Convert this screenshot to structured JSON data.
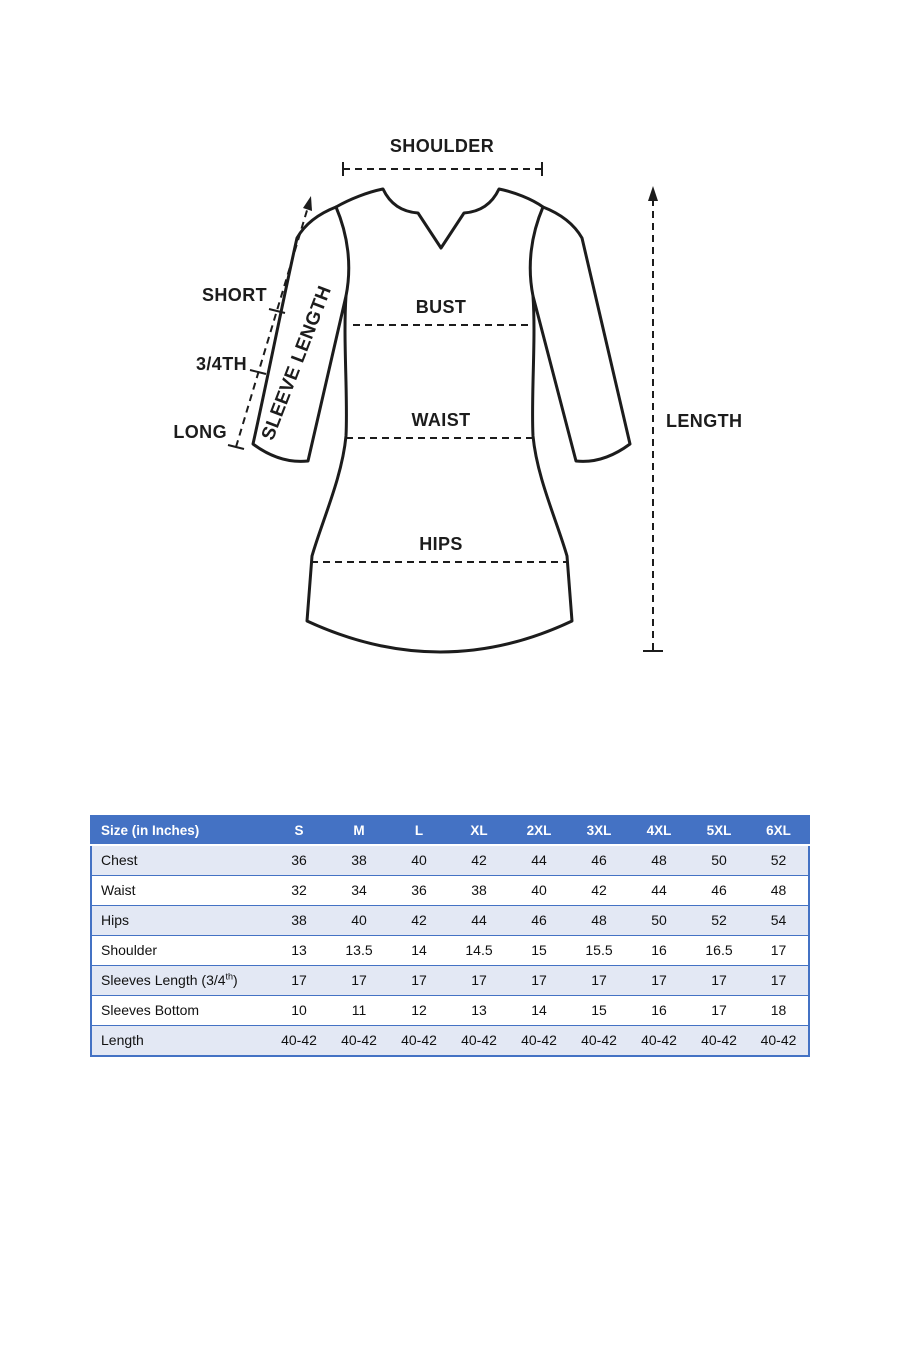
{
  "diagram": {
    "labels": {
      "shoulder": "SHOULDER",
      "bust": "BUST",
      "waist": "WAIST",
      "hips": "HIPS",
      "length": "LENGTH",
      "sleeve_length": "SLEEVE LENGTH",
      "sleeve_short": "SHORT",
      "sleeve_three_quarter": "3/4TH",
      "sleeve_long": "LONG"
    },
    "line_color": "#1c1c1c"
  },
  "size_table": {
    "header": [
      "Size (in Inches)",
      "S",
      "M",
      "L",
      "XL",
      "2XL",
      "3XL",
      "4XL",
      "5XL",
      "6XL"
    ],
    "rows": [
      {
        "label": "Chest",
        "values": [
          "36",
          "38",
          "40",
          "42",
          "44",
          "46",
          "48",
          "50",
          "52"
        ]
      },
      {
        "label": "Waist",
        "values": [
          "32",
          "34",
          "36",
          "38",
          "40",
          "42",
          "44",
          "46",
          "48"
        ]
      },
      {
        "label": "Hips",
        "values": [
          "38",
          "40",
          "42",
          "44",
          "46",
          "48",
          "50",
          "52",
          "54"
        ]
      },
      {
        "label": "Shoulder",
        "values": [
          "13",
          "13.5",
          "14",
          "14.5",
          "15",
          "15.5",
          "16",
          "16.5",
          "17"
        ]
      },
      {
        "label": "Sleeves Length (3/4",
        "label_sup": "th",
        "label_suffix": ")",
        "values": [
          "17",
          "17",
          "17",
          "17",
          "17",
          "17",
          "17",
          "17",
          "17"
        ]
      },
      {
        "label": "Sleeves Bottom",
        "values": [
          "10",
          "11",
          "12",
          "13",
          "14",
          "15",
          "16",
          "17",
          "18"
        ]
      },
      {
        "label": "Length",
        "values": [
          "40-42",
          "40-42",
          "40-42",
          "40-42",
          "40-42",
          "40-42",
          "40-42",
          "40-42",
          "40-42"
        ]
      }
    ],
    "colors": {
      "header_bg": "#4472C4",
      "header_text": "#ffffff",
      "band_bg": "#E3E8F4",
      "border": "#4472C4"
    }
  }
}
